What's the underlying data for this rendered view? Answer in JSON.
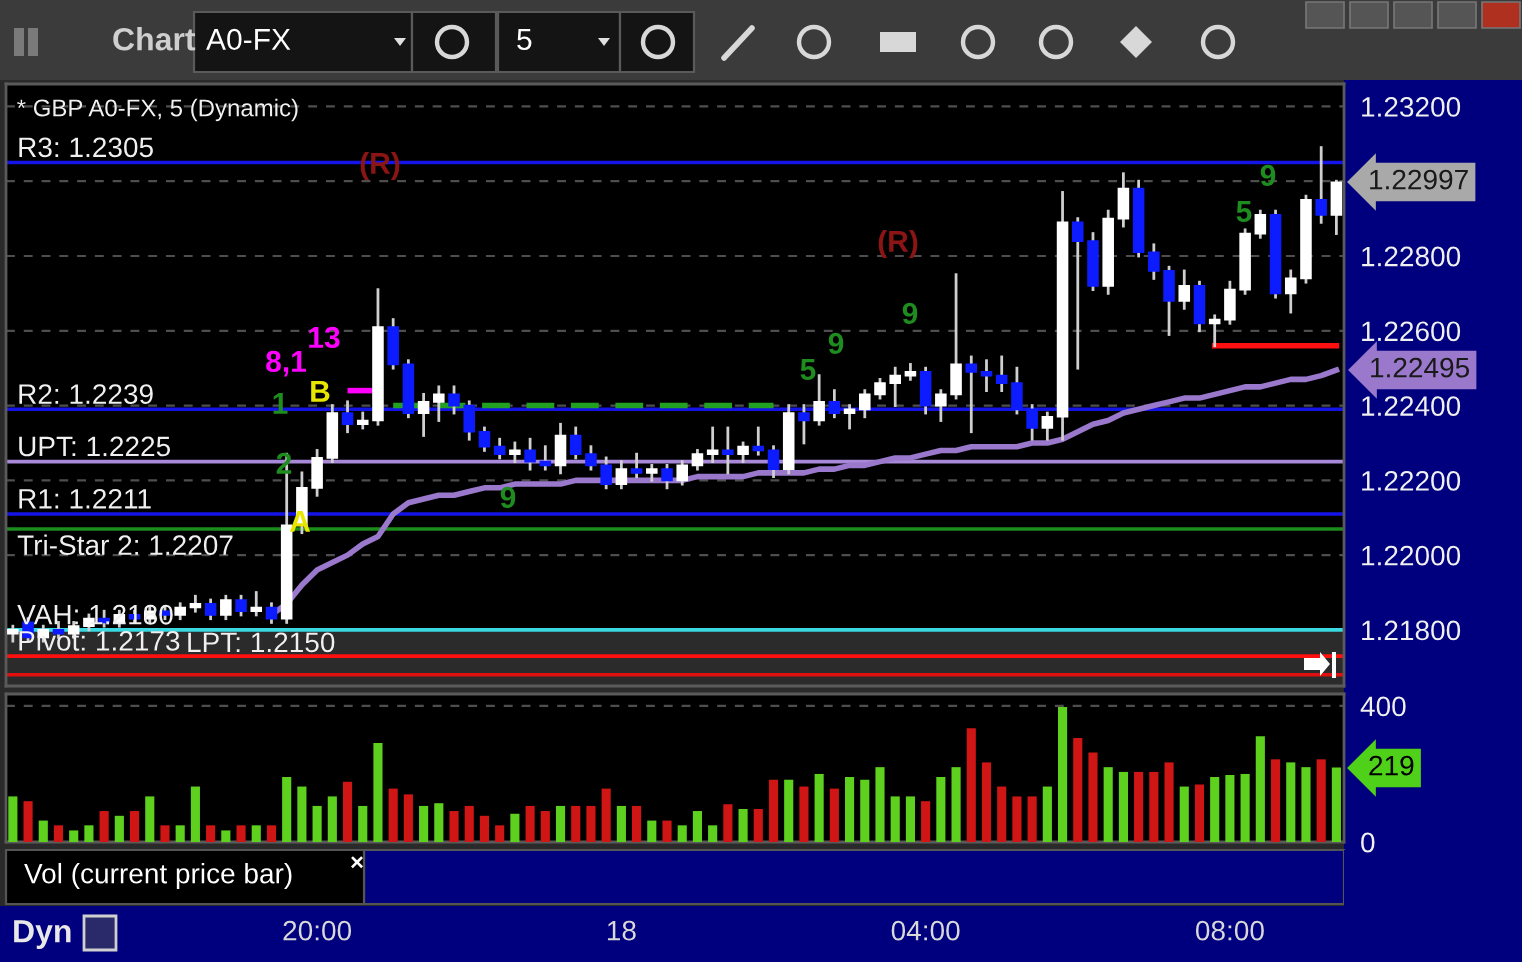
{
  "chart_data": [
    {
      "type": "candlestick",
      "title": "Chart",
      "subtitle": "* GBP A0-FX, 5 (Dynamic)",
      "categories": [
        null,
        null,
        null,
        null,
        null,
        null,
        null,
        null,
        null,
        null,
        null,
        null,
        null,
        null,
        null,
        null,
        null,
        null,
        null,
        null,
        null,
        null,
        null,
        null,
        null,
        null,
        null,
        null,
        null,
        null,
        null,
        null,
        null,
        null,
        null,
        null,
        null,
        null,
        null,
        null,
        null,
        null,
        null,
        null,
        null,
        null,
        null,
        null,
        null,
        null,
        null,
        null,
        null,
        null,
        null,
        null,
        null,
        null,
        null,
        null,
        null,
        null,
        null,
        null,
        null,
        null,
        null,
        null,
        null,
        null,
        null,
        null,
        null,
        null,
        null,
        null,
        null,
        null,
        null,
        null,
        null,
        null,
        null,
        null,
        null,
        null,
        null,
        null
      ],
      "ohlc": [
        [
          1.2179,
          1.2181,
          1.2177,
          1.218
        ],
        [
          1.2182,
          1.2183,
          1.2177,
          1.2178
        ],
        [
          1.2178,
          1.2181,
          1.2177,
          1.218
        ],
        [
          1.218,
          1.2182,
          1.2178,
          1.2179
        ],
        [
          1.2179,
          1.2182,
          1.2178,
          1.2181
        ],
        [
          1.2181,
          1.2184,
          1.218,
          1.2183
        ],
        [
          1.2183,
          1.2185,
          1.2181,
          1.2182
        ],
        [
          1.2182,
          1.2185,
          1.2181,
          1.2184
        ],
        [
          1.2184,
          1.2185,
          1.2182,
          1.2183
        ],
        [
          1.2183,
          1.2186,
          1.2182,
          1.2185
        ],
        [
          1.2185,
          1.2186,
          1.2183,
          1.2184
        ],
        [
          1.2184,
          1.2187,
          1.2183,
          1.2186
        ],
        [
          1.2186,
          1.2189,
          1.2185,
          1.2187
        ],
        [
          1.2187,
          1.2188,
          1.2183,
          1.2184
        ],
        [
          1.2184,
          1.2189,
          1.2183,
          1.2188
        ],
        [
          1.2188,
          1.2189,
          1.2184,
          1.2185
        ],
        [
          1.2185,
          1.219,
          1.2184,
          1.2186
        ],
        [
          1.2186,
          1.2187,
          1.2182,
          1.2183
        ],
        [
          1.2183,
          1.2227,
          1.2182,
          1.2208
        ],
        [
          1.2208,
          1.2222,
          1.2206,
          1.2218
        ],
        [
          1.2218,
          1.2228,
          1.2216,
          1.2226
        ],
        [
          1.2226,
          1.224,
          1.2225,
          1.2238
        ],
        [
          1.2238,
          1.2241,
          1.2233,
          1.2235
        ],
        [
          1.2235,
          1.2238,
          1.2234,
          1.2236
        ],
        [
          1.2236,
          1.2271,
          1.2235,
          1.2261
        ],
        [
          1.2261,
          1.2263,
          1.225,
          1.2251
        ],
        [
          1.2251,
          1.2252,
          1.2237,
          1.2238
        ],
        [
          1.2238,
          1.2243,
          1.2232,
          1.2241
        ],
        [
          1.2241,
          1.2245,
          1.2236,
          1.2243
        ],
        [
          1.2243,
          1.2245,
          1.2238,
          1.224
        ],
        [
          1.224,
          1.2241,
          1.2231,
          1.2233
        ],
        [
          1.2233,
          1.2234,
          1.2228,
          1.2229
        ],
        [
          1.2229,
          1.2231,
          1.2226,
          1.2227
        ],
        [
          1.2227,
          1.223,
          1.2225,
          1.2228
        ],
        [
          1.2228,
          1.2231,
          1.2223,
          1.2225
        ],
        [
          1.2225,
          1.2229,
          1.2223,
          1.2224
        ],
        [
          1.2224,
          1.2235,
          1.2222,
          1.2232
        ],
        [
          1.2232,
          1.2234,
          1.2226,
          1.2227
        ],
        [
          1.2227,
          1.2229,
          1.2223,
          1.2224
        ],
        [
          1.2224,
          1.2226,
          1.2218,
          1.2219
        ],
        [
          1.2219,
          1.2225,
          1.2218,
          1.2223
        ],
        [
          1.2223,
          1.2227,
          1.2221,
          1.2222
        ],
        [
          1.2222,
          1.2224,
          1.222,
          1.2223
        ],
        [
          1.2223,
          1.2224,
          1.2218,
          1.222
        ],
        [
          1.222,
          1.2225,
          1.2219,
          1.2224
        ],
        [
          1.2224,
          1.2228,
          1.2223,
          1.2227
        ],
        [
          1.2227,
          1.2234,
          1.2225,
          1.2228
        ],
        [
          1.2228,
          1.2234,
          1.2222,
          1.2227
        ],
        [
          1.2227,
          1.223,
          1.2225,
          1.2229
        ],
        [
          1.2229,
          1.2234,
          1.2227,
          1.2228
        ],
        [
          1.2228,
          1.2229,
          1.2221,
          1.2223
        ],
        [
          1.2223,
          1.224,
          1.2222,
          1.2238
        ],
        [
          1.2238,
          1.224,
          1.223,
          1.2236
        ],
        [
          1.2236,
          1.2248,
          1.2235,
          1.2241
        ],
        [
          1.2241,
          1.2244,
          1.2237,
          1.2238
        ],
        [
          1.2238,
          1.224,
          1.2234,
          1.2239
        ],
        [
          1.2239,
          1.2244,
          1.2237,
          1.2243
        ],
        [
          1.2243,
          1.2247,
          1.2242,
          1.2246
        ],
        [
          1.2246,
          1.225,
          1.224,
          1.2248
        ],
        [
          1.2248,
          1.2251,
          1.2247,
          1.2249
        ],
        [
          1.2249,
          1.225,
          1.2238,
          1.224
        ],
        [
          1.224,
          1.2244,
          1.2236,
          1.2243
        ],
        [
          1.2243,
          1.2275,
          1.2242,
          1.2251
        ],
        [
          1.2251,
          1.2253,
          1.2233,
          1.2249
        ],
        [
          1.2249,
          1.2252,
          1.2244,
          1.2248
        ],
        [
          1.2248,
          1.2253,
          1.2244,
          1.2246
        ],
        [
          1.2246,
          1.225,
          1.2238,
          1.2239
        ],
        [
          1.2239,
          1.224,
          1.2231,
          1.2234
        ],
        [
          1.2234,
          1.2238,
          1.2231,
          1.2237
        ],
        [
          1.2237,
          1.2297,
          1.2231,
          1.2289
        ],
        [
          1.2289,
          1.229,
          1.225,
          1.2284
        ],
        [
          1.2284,
          1.2286,
          1.2271,
          1.2272
        ],
        [
          1.2272,
          1.2292,
          1.227,
          1.229
        ],
        [
          1.229,
          1.2302,
          1.2288,
          1.2298
        ],
        [
          1.2298,
          1.23,
          1.228,
          1.2281
        ],
        [
          1.2281,
          1.2283,
          1.2274,
          1.2276
        ],
        [
          1.2276,
          1.2277,
          1.2259,
          1.2268
        ],
        [
          1.2268,
          1.2276,
          1.2266,
          1.2272
        ],
        [
          1.2272,
          1.2273,
          1.226,
          1.2262
        ],
        [
          1.2262,
          1.2264,
          1.2256,
          1.2263
        ],
        [
          1.2263,
          1.2273,
          1.2262,
          1.2271
        ],
        [
          1.2271,
          1.2287,
          1.227,
          1.2286
        ],
        [
          1.2286,
          1.2292,
          1.2285,
          1.2291
        ],
        [
          1.2291,
          1.2292,
          1.2269,
          1.227
        ],
        [
          1.227,
          1.2276,
          1.2265,
          1.2274
        ],
        [
          1.2274,
          1.2296,
          1.2273,
          1.2295
        ],
        [
          1.2295,
          1.2309,
          1.2289,
          1.2291
        ],
        [
          1.2291,
          1.23,
          1.2286,
          1.22997
        ]
      ],
      "colors": [
        "#ffffff",
        "#0c1cff",
        "#ffffff",
        "#0c1cff",
        "#ffffff",
        "#ffffff",
        "#0c1cff",
        "#ffffff",
        "#0c1cff",
        "#ffffff",
        "#0c1cff",
        "#ffffff",
        "#ffffff",
        "#0c1cff",
        "#ffffff",
        "#0c1cff",
        "#ffffff",
        "#0c1cff",
        "#ffffff",
        "#ffffff",
        "#ffffff",
        "#ffffff",
        "#0c1cff",
        "#ffffff",
        "#ffffff",
        "#0c1cff",
        "#0c1cff",
        "#ffffff",
        "#ffffff",
        "#0c1cff",
        "#0c1cff",
        "#0c1cff",
        "#0c1cff",
        "#ffffff",
        "#0c1cff",
        "#0c1cff",
        "#ffffff",
        "#0c1cff",
        "#0c1cff",
        "#0c1cff",
        "#ffffff",
        "#0c1cff",
        "#ffffff",
        "#0c1cff",
        "#ffffff",
        "#ffffff",
        "#ffffff",
        "#0c1cff",
        "#ffffff",
        "#0c1cff",
        "#0c1cff",
        "#ffffff",
        "#0c1cff",
        "#ffffff",
        "#0c1cff",
        "#ffffff",
        "#ffffff",
        "#ffffff",
        "#ffffff",
        "#ffffff",
        "#0c1cff",
        "#ffffff",
        "#ffffff",
        "#0c1cff",
        "#0c1cff",
        "#0c1cff",
        "#0c1cff",
        "#0c1cff",
        "#ffffff",
        "#ffffff",
        "#0c1cff",
        "#0c1cff",
        "#ffffff",
        "#ffffff",
        "#0c1cff",
        "#0c1cff",
        "#0c1cff",
        "#ffffff",
        "#0c1cff",
        "#ffffff",
        "#ffffff",
        "#ffffff",
        "#ffffff",
        "#0c1cff",
        "#ffffff",
        "#ffffff",
        "#0c1cff",
        "#ffffff"
      ],
      "series": [
        {
          "type": "line",
          "color": "#9a78cc",
          "values": [
            null,
            null,
            null,
            null,
            null,
            null,
            null,
            null,
            null,
            null,
            null,
            null,
            null,
            null,
            null,
            null,
            null,
            1.2184,
            1.2187,
            1.2192,
            1.2196,
            1.2198,
            1.22,
            1.2203,
            1.2205,
            1.2211,
            1.2214,
            1.2215,
            1.2216,
            1.2216,
            1.2217,
            1.2218,
            1.2218,
            1.2219,
            1.2219,
            1.2219,
            1.2219,
            1.222,
            1.222,
            1.222,
            1.222,
            1.222,
            1.222,
            1.222,
            1.222,
            1.2221,
            1.2221,
            1.2221,
            1.2221,
            1.2222,
            1.2222,
            1.2222,
            1.2222,
            1.2223,
            1.2223,
            1.2224,
            1.2224,
            1.2225,
            1.2226,
            1.2226,
            1.2227,
            1.2228,
            1.2228,
            1.2229,
            1.2229,
            1.2229,
            1.2229,
            1.223,
            1.223,
            1.2231,
            1.2233,
            1.2235,
            1.2236,
            1.2238,
            1.2239,
            1.224,
            1.2241,
            1.2242,
            1.2242,
            1.2243,
            1.2244,
            1.2245,
            1.2245,
            1.2246,
            1.2247,
            1.2247,
            1.2248,
            1.22495
          ],
          "value_labels": [
            null,
            null,
            null,
            null,
            null,
            null,
            null,
            null,
            null,
            null,
            null,
            null,
            null,
            null,
            null,
            null,
            null,
            null,
            null,
            null,
            null,
            null,
            null,
            null,
            null,
            null,
            null,
            null,
            null,
            null,
            null,
            null,
            null,
            null,
            null,
            null,
            null,
            null,
            null,
            null,
            null,
            null,
            null,
            null,
            null,
            null,
            null,
            null,
            null,
            null,
            null,
            null,
            null,
            null,
            null,
            null,
            null,
            null,
            null,
            null,
            null,
            null,
            null,
            null,
            null,
            null,
            null,
            null,
            null,
            null,
            null,
            null,
            null,
            null,
            null,
            null,
            null,
            null,
            null,
            null,
            null,
            null,
            null,
            null,
            null,
            null,
            null,
            "1.22495"
          ]
        },
        {
          "type": "line",
          "color": "#22a022",
          "line_style": "dashed",
          "values": [
            null,
            null,
            null,
            null,
            null,
            null,
            null,
            null,
            null,
            null,
            null,
            null,
            null,
            null,
            null,
            null,
            null,
            null,
            null,
            null,
            null,
            null,
            null,
            null,
            null,
            1.224,
            1.224,
            1.224,
            1.224,
            1.224,
            1.224,
            1.224,
            1.224,
            1.224,
            1.224,
            1.224,
            1.224,
            1.224,
            1.224,
            1.224,
            1.224,
            1.224,
            1.224,
            1.224,
            1.224,
            1.224,
            1.224,
            1.224,
            1.224,
            1.224,
            1.224,
            null,
            null,
            null,
            null,
            null,
            null,
            null,
            null,
            null,
            null,
            null,
            null,
            null,
            null,
            null,
            null,
            null,
            null,
            null,
            null,
            null,
            null,
            null,
            null,
            null,
            null,
            null,
            null,
            null,
            null,
            null,
            null,
            null,
            null,
            null,
            null,
            null
          ]
        },
        {
          "type": "line",
          "color": "#ff00ff",
          "line_style": "dashed",
          "values": [
            null,
            null,
            null,
            null,
            null,
            null,
            null,
            null,
            null,
            null,
            null,
            null,
            null,
            null,
            null,
            null,
            null,
            null,
            null,
            null,
            null,
            null,
            1.2244,
            1.2244,
            1.2244,
            null,
            null,
            null,
            null,
            null,
            null,
            null,
            null,
            null,
            null,
            null,
            null,
            null,
            null,
            null,
            null,
            null,
            null,
            null,
            null,
            null,
            null,
            null,
            null,
            null,
            null,
            null,
            null,
            null,
            null,
            null,
            null,
            null,
            null,
            null,
            null,
            null,
            null,
            null,
            null,
            null,
            null,
            null,
            null,
            null,
            null,
            null,
            null,
            null,
            null,
            null,
            null,
            null,
            null,
            null,
            null,
            null,
            null,
            null,
            null,
            null,
            null,
            null
          ]
        },
        {
          "type": "line",
          "color": "#ff1010",
          "values": [
            null,
            null,
            null,
            null,
            null,
            null,
            null,
            null,
            null,
            null,
            null,
            null,
            null,
            null,
            null,
            null,
            null,
            null,
            null,
            null,
            null,
            null,
            null,
            null,
            null,
            null,
            null,
            null,
            null,
            null,
            null,
            null,
            null,
            null,
            null,
            null,
            null,
            null,
            null,
            null,
            null,
            null,
            null,
            null,
            null,
            null,
            null,
            null,
            null,
            null,
            null,
            null,
            null,
            null,
            null,
            null,
            null,
            null,
            null,
            null,
            null,
            null,
            null,
            null,
            null,
            null,
            null,
            null,
            null,
            null,
            null,
            null,
            null,
            null,
            null,
            null,
            null,
            null,
            null,
            1.2256,
            1.2256,
            1.2256,
            1.2256,
            1.2256,
            1.2256,
            1.2256,
            1.2256,
            1.2256
          ]
        }
      ],
      "ref_lines": [
        {
          "axis": "y",
          "value": 1.2305,
          "label": "R3: 1.2305",
          "color": "#1414e6"
        },
        {
          "axis": "y",
          "value": 1.2239,
          "label": "R2: 1.2239",
          "color": "#1414e6"
        },
        {
          "axis": "y",
          "value": 1.2225,
          "label": "UPT: 1.2225",
          "color": "#a888d8"
        },
        {
          "axis": "y",
          "value": 1.2211,
          "label": "R1: 1.2211",
          "color": "#1414e6"
        },
        {
          "axis": "y",
          "value": 1.2207,
          "label": "Tri-Star 2: 1.2207",
          "color": "#1c8c1c"
        },
        {
          "axis": "y",
          "value": 1.218,
          "label": "VAH: 1.2180",
          "color": "#3ad8e0"
        },
        {
          "axis": "y",
          "value": 1.2173,
          "label": "Pivot: 1.2173",
          "color": "#ff1010"
        },
        {
          "axis": "y",
          "value": 1.2168,
          "label": null,
          "color": "#e01010"
        }
      ],
      "bands": [
        {
          "axis": "y",
          "from": 1.2165,
          "to": 1.218,
          "color": "#2b2b2b"
        }
      ],
      "annotations": [
        "A0-FX",
        "5",
        "LPT: 1.2150",
        "(R)",
        "(R)",
        "13",
        "8,1",
        "B",
        "A",
        "1",
        "2",
        "9",
        "5",
        "9",
        "9",
        "5",
        "9",
        "1.22997"
      ],
      "ylim": [
        1.2165,
        1.2326
      ],
      "yticks": [
        {
          "value": 1.218,
          "label": "1.21800"
        },
        {
          "value": 1.22,
          "label": "1.22000"
        },
        {
          "value": 1.222,
          "label": "1.22200"
        },
        {
          "value": 1.224,
          "label": "1.22400"
        },
        {
          "value": 1.226,
          "label": "1.22600"
        },
        {
          "value": 1.228,
          "label": "1.22800"
        },
        {
          "value": 1.23,
          "label": null
        },
        {
          "value": 1.232,
          "label": "1.23200"
        }
      ],
      "grid": "y"
    },
    {
      "type": "bar",
      "categories": [
        null,
        null,
        null,
        null,
        null,
        null,
        null,
        null,
        null,
        null,
        null,
        null,
        null,
        null,
        null,
        null,
        null,
        null,
        null,
        null,
        "20:00",
        null,
        null,
        null,
        null,
        null,
        null,
        null,
        null,
        null,
        null,
        null,
        null,
        null,
        null,
        null,
        null,
        null,
        null,
        null,
        "18",
        null,
        null,
        null,
        null,
        null,
        null,
        null,
        null,
        null,
        null,
        null,
        null,
        null,
        null,
        null,
        null,
        null,
        null,
        null,
        "04:00",
        null,
        null,
        null,
        null,
        null,
        null,
        null,
        null,
        null,
        null,
        null,
        null,
        null,
        null,
        null,
        null,
        null,
        null,
        null,
        "08:00",
        null,
        null,
        null,
        null,
        null,
        null,
        null
      ],
      "values": [
        134,
        120,
        63,
        49,
        34,
        49,
        91,
        77,
        91,
        134,
        49,
        49,
        163,
        49,
        34,
        49,
        49,
        49,
        191,
        163,
        106,
        134,
        177,
        106,
        291,
        157,
        140,
        106,
        114,
        91,
        106,
        77,
        49,
        83,
        106,
        91,
        106,
        106,
        106,
        157,
        106,
        106,
        63,
        63,
        49,
        91,
        49,
        111,
        97,
        97,
        183,
        183,
        163,
        200,
        157,
        191,
        183,
        220,
        134,
        134,
        120,
        191,
        220,
        334,
        234,
        163,
        134,
        134,
        163,
        397,
        306,
        263,
        220,
        206,
        206,
        206,
        234,
        163,
        169,
        191,
        197,
        200,
        311,
        243,
        234,
        220,
        243,
        219
      ],
      "colors": [
        "#5ed11f",
        "#d01515",
        "#5ed11f",
        "#d01515",
        "#5ed11f",
        "#5ed11f",
        "#d01515",
        "#5ed11f",
        "#d01515",
        "#5ed11f",
        "#d01515",
        "#5ed11f",
        "#5ed11f",
        "#d01515",
        "#5ed11f",
        "#d01515",
        "#5ed11f",
        "#d01515",
        "#5ed11f",
        "#5ed11f",
        "#5ed11f",
        "#5ed11f",
        "#d01515",
        "#5ed11f",
        "#5ed11f",
        "#d01515",
        "#d01515",
        "#5ed11f",
        "#5ed11f",
        "#d01515",
        "#d01515",
        "#d01515",
        "#d01515",
        "#5ed11f",
        "#d01515",
        "#d01515",
        "#5ed11f",
        "#d01515",
        "#d01515",
        "#d01515",
        "#5ed11f",
        "#d01515",
        "#5ed11f",
        "#d01515",
        "#5ed11f",
        "#5ed11f",
        "#5ed11f",
        "#d01515",
        "#5ed11f",
        "#d01515",
        "#d01515",
        "#5ed11f",
        "#d01515",
        "#5ed11f",
        "#d01515",
        "#5ed11f",
        "#5ed11f",
        "#5ed11f",
        "#5ed11f",
        "#5ed11f",
        "#d01515",
        "#5ed11f",
        "#5ed11f",
        "#d01515",
        "#d01515",
        "#d01515",
        "#d01515",
        "#d01515",
        "#5ed11f",
        "#5ed11f",
        "#d01515",
        "#d01515",
        "#5ed11f",
        "#5ed11f",
        "#d01515",
        "#d01515",
        "#d01515",
        "#5ed11f",
        "#d01515",
        "#5ed11f",
        "#5ed11f",
        "#5ed11f",
        "#5ed11f",
        "#d01515",
        "#5ed11f",
        "#5ed11f",
        "#d01515",
        "#5ed11f"
      ],
      "annotations": [
        "Vol (current price bar)",
        "×",
        "Dyn",
        "219"
      ],
      "ylim": [
        0,
        435
      ],
      "yticks": [
        0,
        400
      ],
      "grid": "y"
    }
  ]
}
